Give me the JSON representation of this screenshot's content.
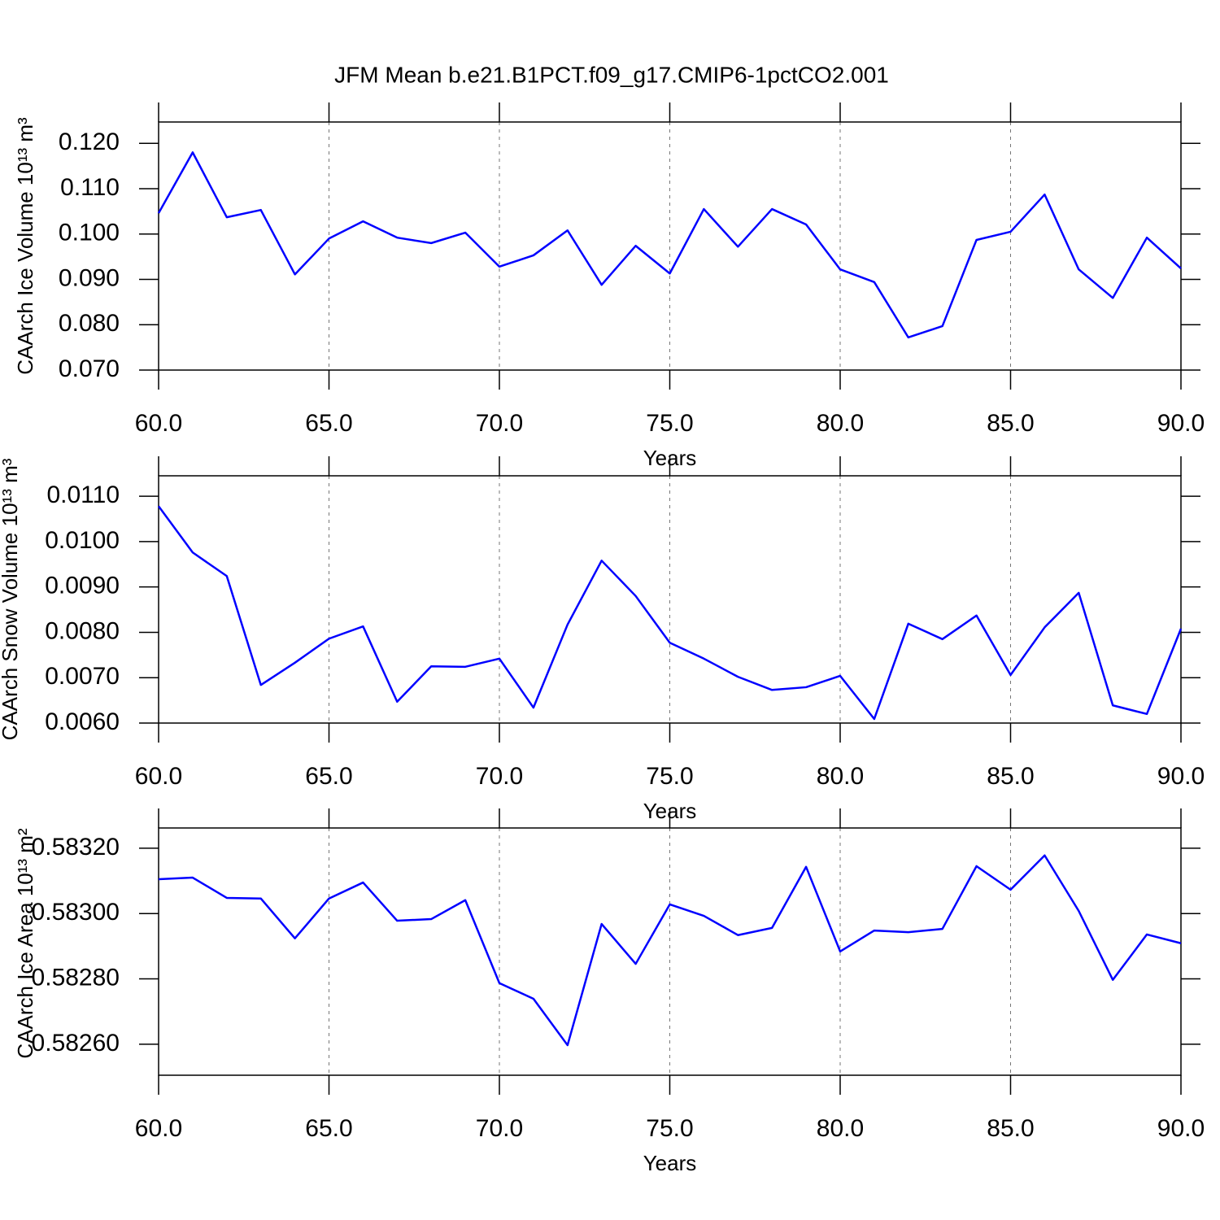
{
  "chart_data": [
    {
      "type": "line",
      "title": "JFM Mean b.e21.B1PCT.f09_g17.CMIP6-1pctCO2.001",
      "xlabel": "Years",
      "ylabel": "CAArch Ice Volume 10¹³ m³",
      "x": [
        60,
        61,
        62,
        63,
        64,
        65,
        66,
        67,
        68,
        69,
        70,
        71,
        72,
        73,
        74,
        75,
        76,
        77,
        78,
        79,
        80,
        81,
        82,
        83,
        84,
        85,
        86,
        87,
        88,
        89,
        90
      ],
      "series": [
        {
          "color": "#0000ff",
          "values": [
            0.1046,
            0.118,
            0.1037,
            0.1053,
            0.0911,
            0.099,
            0.1028,
            0.0992,
            0.098,
            0.1003,
            0.0928,
            0.0953,
            0.1008,
            0.0888,
            0.0974,
            0.0913,
            0.1055,
            0.0972,
            0.1055,
            0.1021,
            0.0922,
            0.0894,
            0.0772,
            0.0797,
            0.0987,
            0.1005,
            0.1087,
            0.0922,
            0.0859,
            0.0992,
            0.0924
          ]
        }
      ],
      "xlim": [
        60,
        90
      ],
      "xticks": [
        {
          "value": 60,
          "label": "60.0"
        },
        {
          "value": 65,
          "label": "65.0"
        },
        {
          "value": 70,
          "label": "70.0"
        },
        {
          "value": 75,
          "label": "75.0"
        },
        {
          "value": 80,
          "label": "80.0"
        },
        {
          "value": 85,
          "label": "85.0"
        },
        {
          "value": 90,
          "label": "90.0"
        }
      ],
      "ylim": [
        0.07,
        0.1247
      ],
      "yticks": [
        {
          "value": 0.07,
          "label": "0.070"
        },
        {
          "value": 0.08,
          "label": "0.080"
        },
        {
          "value": 0.09,
          "label": "0.090"
        },
        {
          "value": 0.1,
          "label": "0.100"
        },
        {
          "value": 0.11,
          "label": "0.110"
        },
        {
          "value": 0.12,
          "label": "0.120"
        }
      ],
      "grid": true
    },
    {
      "type": "line",
      "xlabel": "Years",
      "ylabel": "CAArch Snow Volume 10¹³ m³",
      "x": [
        60,
        61,
        62,
        63,
        64,
        65,
        66,
        67,
        68,
        69,
        70,
        71,
        72,
        73,
        74,
        75,
        76,
        77,
        78,
        79,
        80,
        81,
        82,
        83,
        84,
        85,
        86,
        87,
        88,
        89,
        90
      ],
      "series": [
        {
          "color": "#0000ff",
          "values": [
            0.01078,
            0.00976,
            0.00924,
            0.00684,
            0.00733,
            0.00786,
            0.00813,
            0.00647,
            0.00725,
            0.00724,
            0.00742,
            0.00634,
            0.00817,
            0.00958,
            0.0088,
            0.00777,
            0.00742,
            0.00702,
            0.00673,
            0.00679,
            0.00704,
            0.00609,
            0.00819,
            0.00785,
            0.00837,
            0.00706,
            0.00811,
            0.00887,
            0.00639,
            0.0062,
            0.00808
          ]
        }
      ],
      "xlim": [
        60,
        90
      ],
      "xticks": [
        {
          "value": 60,
          "label": "60.0"
        },
        {
          "value": 65,
          "label": "65.0"
        },
        {
          "value": 70,
          "label": "70.0"
        },
        {
          "value": 75,
          "label": "75.0"
        },
        {
          "value": 80,
          "label": "80.0"
        },
        {
          "value": 85,
          "label": "85.0"
        },
        {
          "value": 90,
          "label": "90.0"
        }
      ],
      "ylim": [
        0.006,
        0.01145
      ],
      "yticks": [
        {
          "value": 0.006,
          "label": "0.0060"
        },
        {
          "value": 0.007,
          "label": "0.0070"
        },
        {
          "value": 0.008,
          "label": "0.0080"
        },
        {
          "value": 0.009,
          "label": "0.0090"
        },
        {
          "value": 0.01,
          "label": "0.0100"
        },
        {
          "value": 0.011,
          "label": "0.0110"
        }
      ],
      "grid": true
    },
    {
      "type": "line",
      "xlabel": "Years",
      "ylabel": "CAArch Ice Area 10¹³ m²",
      "x": [
        60,
        61,
        62,
        63,
        64,
        65,
        66,
        67,
        68,
        69,
        70,
        71,
        72,
        73,
        74,
        75,
        76,
        77,
        78,
        79,
        80,
        81,
        82,
        83,
        84,
        85,
        86,
        87,
        88,
        89,
        90
      ],
      "series": [
        {
          "color": "#0000ff",
          "values": [
            0.583105,
            0.58311,
            0.583048,
            0.583046,
            0.582924,
            0.583046,
            0.583095,
            0.582978,
            0.582983,
            0.583041,
            0.582787,
            0.582739,
            0.582597,
            0.582968,
            0.582846,
            0.583028,
            0.582993,
            0.582934,
            0.582956,
            0.583143,
            0.582884,
            0.582948,
            0.582943,
            0.582953,
            0.583145,
            0.583073,
            0.583178,
            0.583008,
            0.582797,
            0.582936,
            0.582909
          ]
        }
      ],
      "xlim": [
        60,
        90
      ],
      "xticks": [
        {
          "value": 60,
          "label": "60.0"
        },
        {
          "value": 65,
          "label": "65.0"
        },
        {
          "value": 70,
          "label": "70.0"
        },
        {
          "value": 75,
          "label": "75.0"
        },
        {
          "value": 80,
          "label": "80.0"
        },
        {
          "value": 85,
          "label": "85.0"
        },
        {
          "value": 90,
          "label": "90.0"
        }
      ],
      "ylim": [
        0.582505,
        0.583262
      ],
      "yticks": [
        {
          "value": 0.5826,
          "label": "0.58260"
        },
        {
          "value": 0.5828,
          "label": "0.58280"
        },
        {
          "value": 0.583,
          "label": "0.58300"
        },
        {
          "value": 0.5832,
          "label": "0.58320"
        }
      ],
      "grid": true
    }
  ]
}
